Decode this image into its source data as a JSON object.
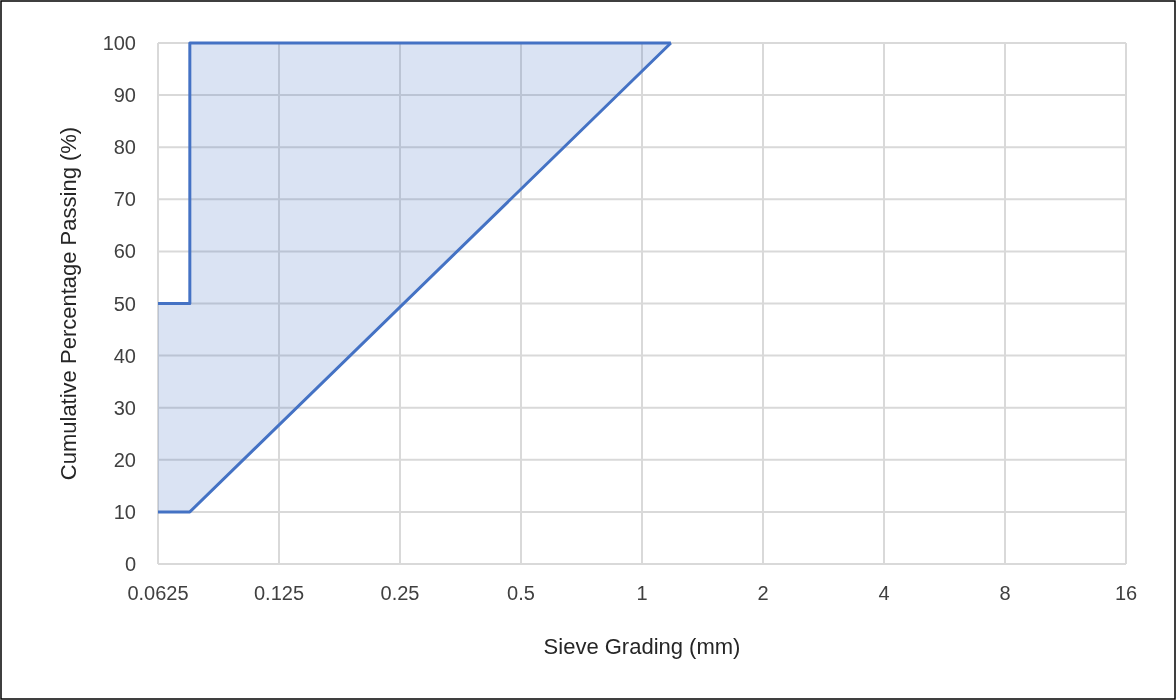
{
  "chart_data": {
    "type": "line",
    "xlabel": "Sieve Grading (mm)",
    "ylabel": "Cumulative Percentage Passing (%)",
    "log": "x",
    "xlim": [
      0.0625,
      16
    ],
    "xticks": [
      0.0625,
      0.125,
      0.25,
      0.5,
      1,
      2,
      4,
      8,
      16
    ],
    "ylim": [
      0,
      100
    ],
    "yticks": [
      0,
      10,
      20,
      30,
      40,
      50,
      60,
      70,
      80,
      90,
      100
    ],
    "grid": true,
    "marker": "none",
    "line_style": "solid",
    "series": [
      {
        "color": "#4472c4",
        "x": [
          0.0625,
          0.075,
          0.075,
          1.18
        ],
        "values": [
          50,
          50,
          100,
          100
        ],
        "lower": [
          10,
          10,
          10,
          100
        ],
        "upper": [
          50,
          50,
          100,
          100
        ]
      },
      {
        "color": "#4472c4",
        "x": [
          0.0625,
          0.075,
          1.18
        ],
        "values": [
          10,
          10,
          100
        ]
      }
    ]
  }
}
